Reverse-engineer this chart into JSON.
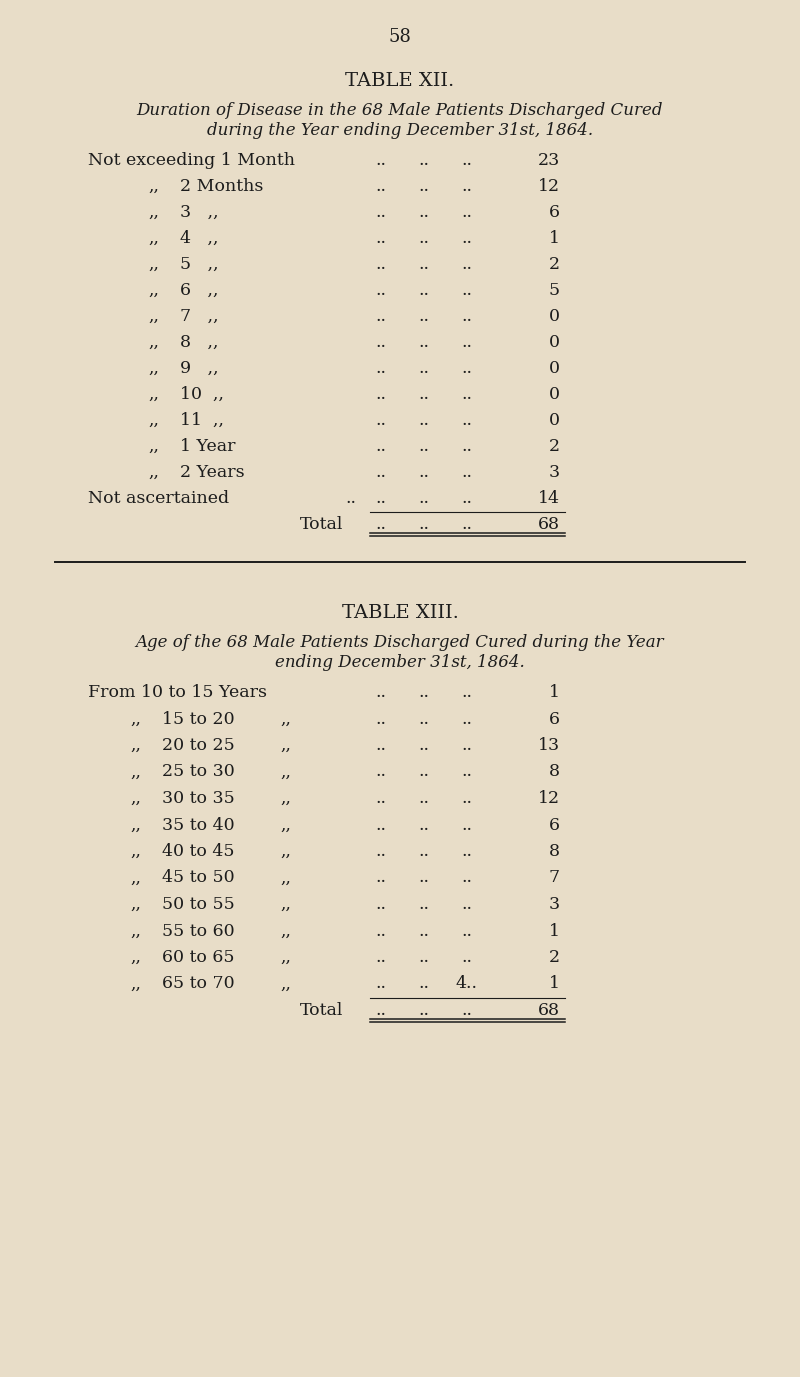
{
  "page_number": "58",
  "bg_color": "#e8ddc8",
  "text_color": "#1c1c1c",
  "table12_title": "TABLE XII.",
  "table12_sub1": "Duration of Disease in the 68 Male Patients Discharged Cured",
  "table12_sub2": "during the Year ending December 31st, 1864.",
  "table12_rows": [
    {
      "label1": "Not exceeding 1 Month",
      "label2": "",
      "dots": "..  ..  ..",
      "val": "23"
    },
    {
      "label1": ",,",
      "label2": "2 Months",
      "dots": "..  ..  ..",
      "val": "12"
    },
    {
      "label1": ",,",
      "label2": "3   ,,",
      "dots": "..  ..  ..",
      "val": "6"
    },
    {
      "label1": ",,",
      "label2": "4   ,,",
      "dots": "..  ..  ..",
      "val": "1"
    },
    {
      "label1": ",,",
      "label2": "5   ,,",
      "dots": "..  ..  ..",
      "val": "2"
    },
    {
      "label1": ",,",
      "label2": "6   ,,",
      "dots": "..  ..  ..",
      "val": "5"
    },
    {
      "label1": ",,",
      "label2": "7   ,,",
      "dots": "..  ..  ..",
      "val": "0"
    },
    {
      "label1": ",,",
      "label2": "8   ,,",
      "dots": "..  ..  ..",
      "val": "0"
    },
    {
      "label1": ",,",
      "label2": "9   ,,",
      "dots": "..  ..  ..",
      "val": "0"
    },
    {
      "label1": ",,",
      "label2": "10  ,,",
      "dots": "..  ..  ..",
      "val": "0"
    },
    {
      "label1": ",,",
      "label2": "11  ,,",
      "dots": "..  ..  ..",
      "val": "0"
    },
    {
      "label1": ",,",
      "label2": "1 Year",
      "dots": "..  ..  ..",
      "val": "2"
    },
    {
      "label1": ",,",
      "label2": "2 Years",
      "dots": "..  ..  ..",
      "val": "3"
    },
    {
      "label1": "Not ascertained",
      "label2": "",
      "dots": "..  ..  ..  ..",
      "val": "14"
    },
    {
      "label1": "Total",
      "label2": "",
      "dots": "..  ..  ..",
      "val": "68"
    }
  ],
  "table13_title": "TABLE XIII.",
  "table13_sub1": "Age of the 68 Male Patients Discharged Cured during the Year",
  "table13_sub2": "ending December 31st, 1864.",
  "table13_rows": [
    {
      "label1": "From 10 to 15 Years",
      "label2": "",
      "dots": "..  ..  ..",
      "val": "1"
    },
    {
      "label1": ",,",
      "label2": "15 to 20  ,,",
      "dots": "..  ..  ..",
      "val": "6"
    },
    {
      "label1": ",,",
      "label2": "20 to 25  ,,",
      "dots": "..  ..  ..",
      "val": "13"
    },
    {
      "label1": ",,",
      "label2": "25 to 30  ,,",
      "dots": "..  ..  ..",
      "val": "8"
    },
    {
      "label1": ",,",
      "label2": "30 to 35  ,,",
      "dots": "..  ..  ..",
      "val": "12"
    },
    {
      "label1": ",,",
      "label2": "35 to 40  ,,",
      "dots": "..  .  ..",
      "val": "6"
    },
    {
      "label1": ",,",
      "label2": "40 to 45  ,,",
      "dots": "..  ..  ..",
      "val": "8"
    },
    {
      "label1": ",,",
      "label2": "45 to 50  ,,",
      "dots": "..  ..  ..",
      "val": "7"
    },
    {
      "label1": ",,",
      "label2": "50 to 55  ,,",
      "dots": "..  ..  ..",
      "val": "3"
    },
    {
      "label1": ",,",
      "label2": "55 to 60  ,,",
      "dots": "..  ..  ..",
      "val": "1"
    },
    {
      "label1": ",,",
      "label2": "60 to 65  ,,",
      "dots": "..  ..  ..",
      "val": "2"
    },
    {
      "label1": ",,",
      "label2": "65 to 70  ,,",
      "dots": "..  ..  4..",
      "val": "1"
    },
    {
      "label1": "Total",
      "label2": "",
      "dots": "..  ..  ..",
      "val": "68"
    }
  ]
}
